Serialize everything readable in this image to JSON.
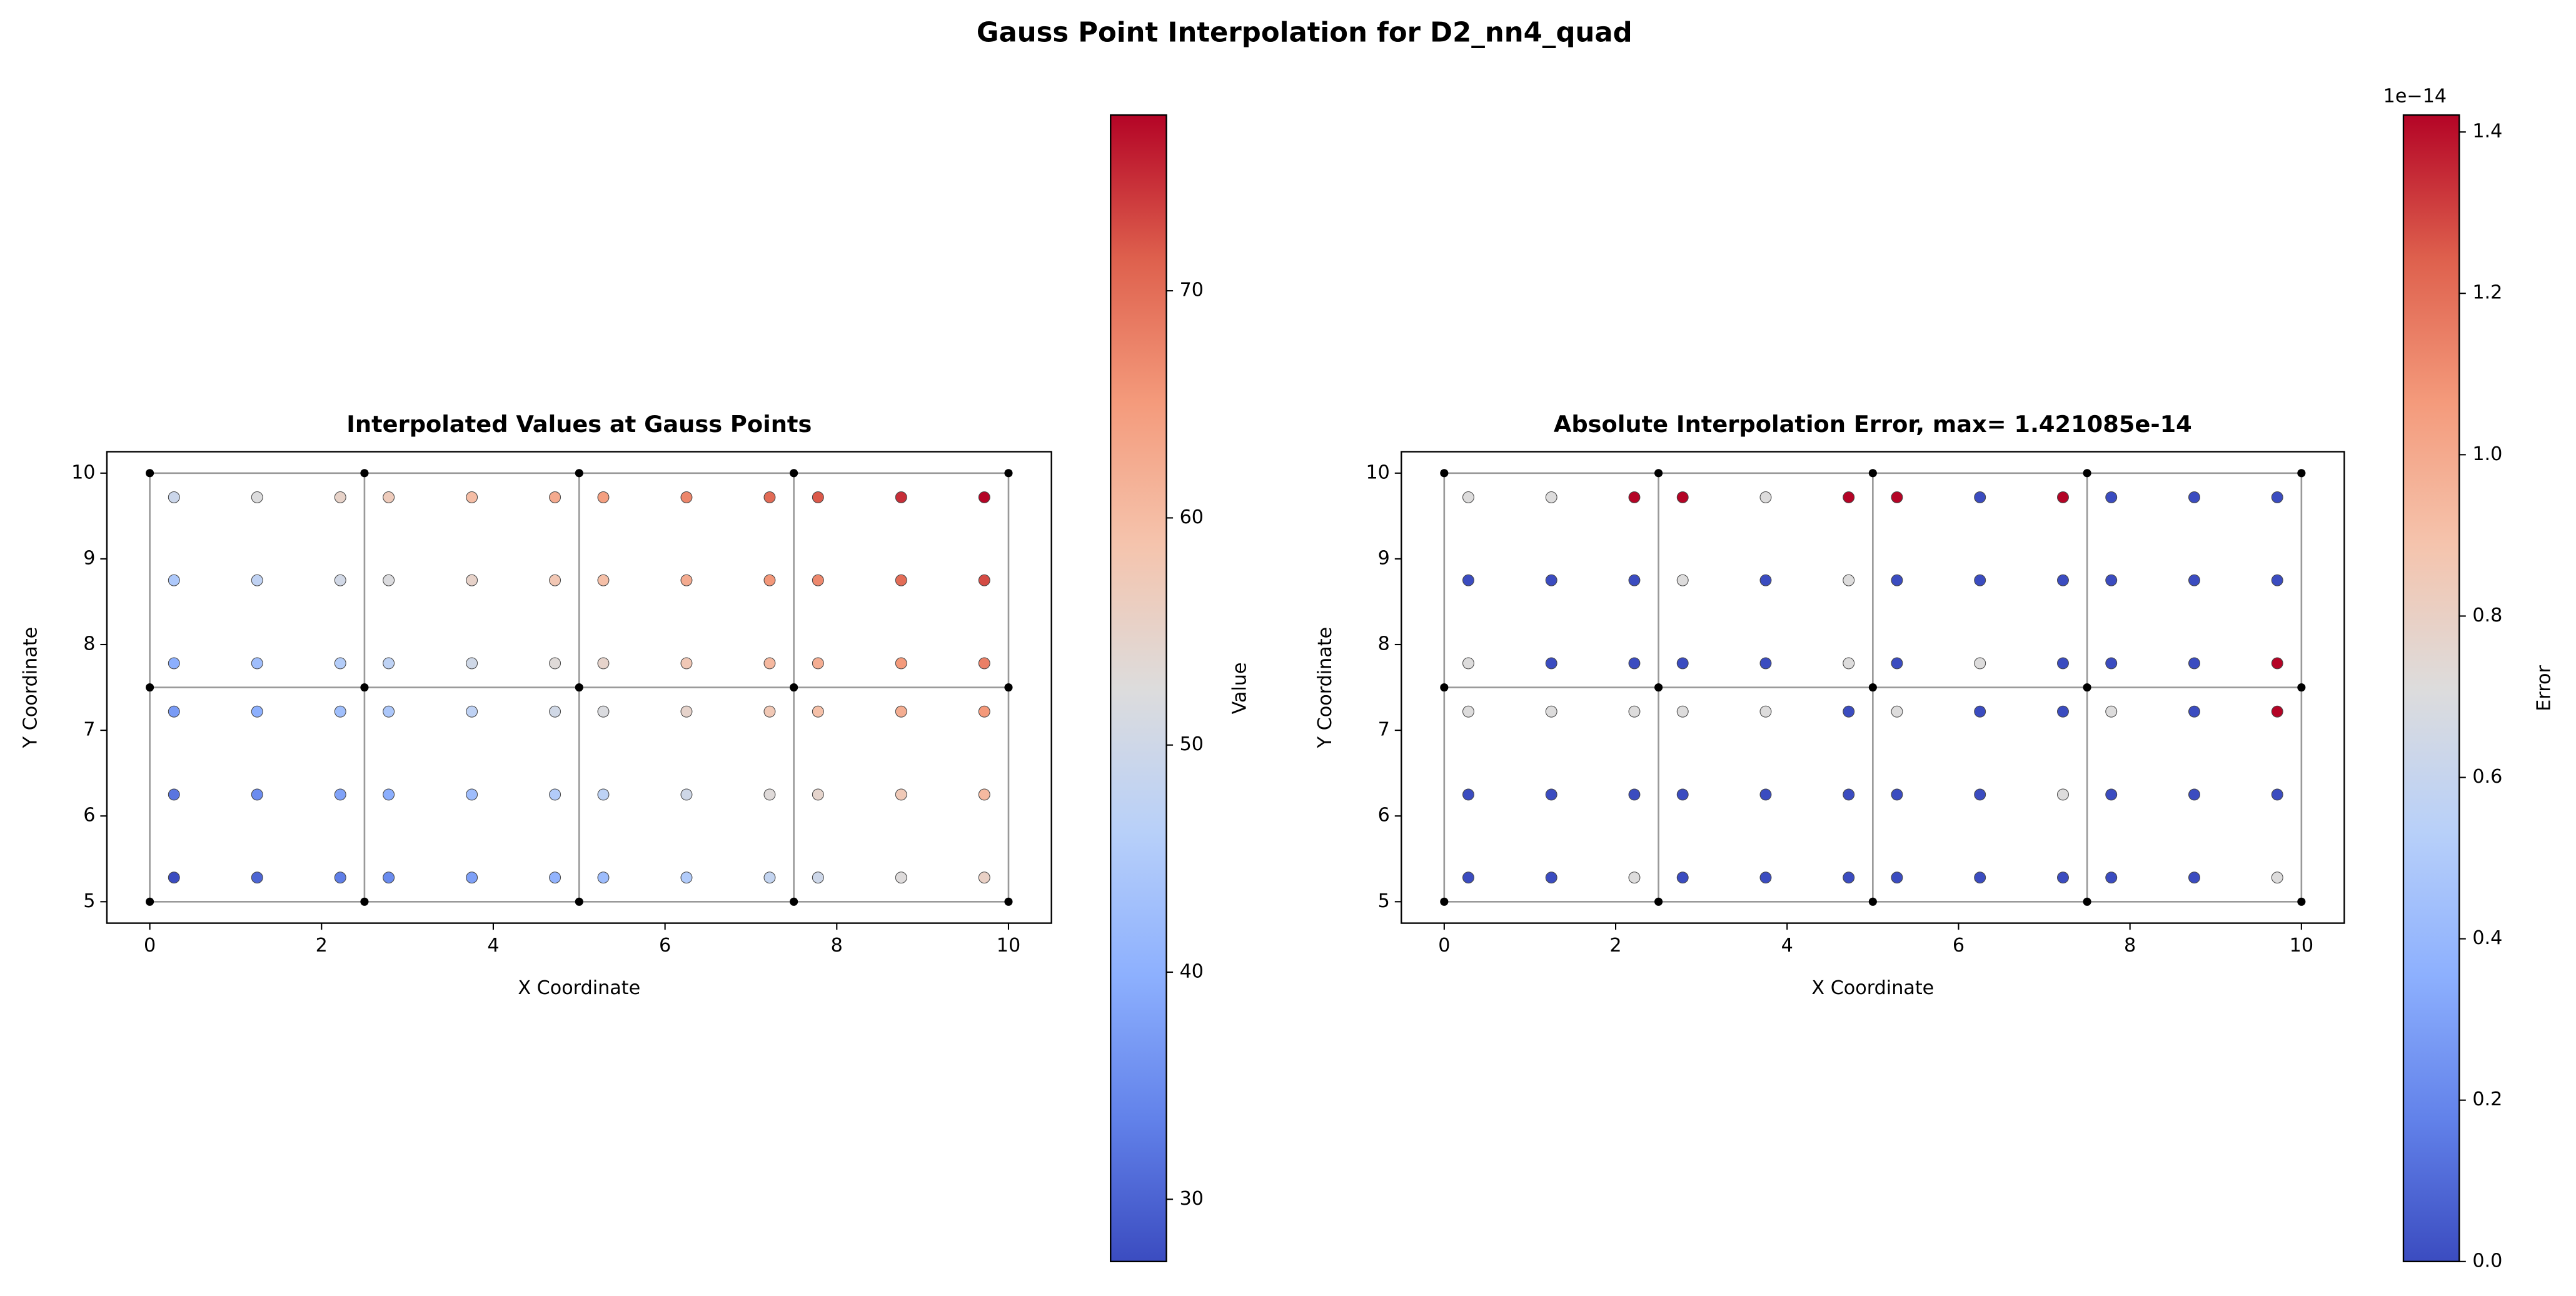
{
  "title": "Gauss Point Interpolation for D2_nn4_quad",
  "chart_data": [
    {
      "type": "scatter",
      "title": "Interpolated Values at Gauss Points",
      "xlabel": "X Coordinate",
      "ylabel": "Y Coordinate",
      "colorbar_label": "Value",
      "colormap": "coolwarm",
      "clim": [
        27.26,
        77.74
      ],
      "colorbar_ticks": [
        30,
        40,
        50,
        60,
        70
      ],
      "xlim": [
        -0.5,
        10.5
      ],
      "ylim": [
        4.75,
        10.25
      ],
      "xticks": [
        0,
        2,
        4,
        6,
        8,
        10
      ],
      "yticks": [
        5,
        6,
        7,
        8,
        9,
        10
      ],
      "mesh_x": [
        0,
        2.5,
        5,
        7.5,
        10
      ],
      "mesh_y": [
        5,
        7.5,
        10
      ],
      "x": [
        0.2817,
        1.25,
        2.2183,
        2.7817,
        3.75,
        4.7183,
        5.2817,
        6.25,
        7.2183,
        7.7817,
        8.75,
        9.7183,
        0.2817,
        1.25,
        2.2183,
        2.7817,
        3.75,
        4.7183,
        5.2817,
        6.25,
        7.2183,
        7.7817,
        8.75,
        9.7183,
        0.2817,
        1.25,
        2.2183,
        2.7817,
        3.75,
        4.7183,
        5.2817,
        6.25,
        7.2183,
        7.7817,
        8.75,
        9.7183,
        0.2817,
        1.25,
        2.2183,
        2.7817,
        3.75,
        4.7183,
        5.2817,
        6.25,
        7.2183,
        7.7817,
        8.75,
        9.7183,
        0.2817,
        1.25,
        2.2183,
        2.7817,
        3.75,
        4.7183,
        5.2817,
        6.25,
        7.2183,
        7.7817,
        8.75,
        9.7183,
        0.2817,
        1.25,
        2.2183,
        2.7817,
        3.75,
        4.7183,
        5.2817,
        6.25,
        7.2183,
        7.7817,
        8.75,
        9.7183
      ],
      "y": [
        5.2817,
        5.2817,
        5.2817,
        5.2817,
        5.2817,
        5.2817,
        5.2817,
        5.2817,
        5.2817,
        5.2817,
        5.2817,
        5.2817,
        6.25,
        6.25,
        6.25,
        6.25,
        6.25,
        6.25,
        6.25,
        6.25,
        6.25,
        6.25,
        6.25,
        6.25,
        7.2183,
        7.2183,
        7.2183,
        7.2183,
        7.2183,
        7.2183,
        7.2183,
        7.2183,
        7.2183,
        7.2183,
        7.2183,
        7.2183,
        7.7817,
        7.7817,
        7.7817,
        7.7817,
        7.7817,
        7.7817,
        7.7817,
        7.7817,
        7.7817,
        7.7817,
        7.7817,
        7.7817,
        8.75,
        8.75,
        8.75,
        8.75,
        8.75,
        8.75,
        8.75,
        8.75,
        8.75,
        8.75,
        8.75,
        8.75,
        9.7183,
        9.7183,
        9.7183,
        9.7183,
        9.7183,
        9.7183,
        9.7183,
        9.7183,
        9.7183,
        9.7183,
        9.7183,
        9.7183
      ],
      "values": [
        27.26,
        30.16,
        33.06,
        34.76,
        37.66,
        40.56,
        42.26,
        45.16,
        48.06,
        49.76,
        52.66,
        55.56,
        32.1,
        35.0,
        37.9,
        39.6,
        42.5,
        45.4,
        47.1,
        50.0,
        52.9,
        54.6,
        57.5,
        60.4,
        36.94,
        39.84,
        42.74,
        44.44,
        47.34,
        50.24,
        51.94,
        54.84,
        57.74,
        59.44,
        62.34,
        65.24,
        39.76,
        42.66,
        45.56,
        47.26,
        50.16,
        53.06,
        54.76,
        57.66,
        60.56,
        62.26,
        65.16,
        68.06,
        44.6,
        47.5,
        50.4,
        52.1,
        55.0,
        57.9,
        59.6,
        62.5,
        65.4,
        67.1,
        70.0,
        72.9,
        49.44,
        52.34,
        55.24,
        56.94,
        59.84,
        62.74,
        64.44,
        67.34,
        70.24,
        71.94,
        74.84,
        77.74
      ]
    },
    {
      "type": "scatter",
      "title": "Absolute Interpolation Error, max= 1.421085e-14",
      "xlabel": "X Coordinate",
      "ylabel": "Y Coordinate",
      "colorbar_label": "Error",
      "colorbar_offset": "1e−14",
      "colormap": "coolwarm",
      "clim": [
        0,
        1.421085e-14
      ],
      "colorbar_ticks": [
        {
          "value": 0,
          "label": "0.0"
        },
        {
          "value": 2e-15,
          "label": "0.2"
        },
        {
          "value": 4e-15,
          "label": "0.4"
        },
        {
          "value": 6e-15,
          "label": "0.6"
        },
        {
          "value": 8e-15,
          "label": "0.8"
        },
        {
          "value": 1e-14,
          "label": "1.0"
        },
        {
          "value": 1.2e-14,
          "label": "1.2"
        },
        {
          "value": 1.4e-14,
          "label": "1.4"
        }
      ],
      "xlim": [
        -0.5,
        10.5
      ],
      "ylim": [
        4.75,
        10.25
      ],
      "xticks": [
        0,
        2,
        4,
        6,
        8,
        10
      ],
      "yticks": [
        5,
        6,
        7,
        8,
        9,
        10
      ],
      "mesh_x": [
        0,
        2.5,
        5,
        7.5,
        10
      ],
      "mesh_y": [
        5,
        7.5,
        10
      ],
      "x": [
        0.2817,
        1.25,
        2.2183,
        2.7817,
        3.75,
        4.7183,
        5.2817,
        6.25,
        7.2183,
        7.7817,
        8.75,
        9.7183,
        0.2817,
        1.25,
        2.2183,
        2.7817,
        3.75,
        4.7183,
        5.2817,
        6.25,
        7.2183,
        7.7817,
        8.75,
        9.7183,
        0.2817,
        1.25,
        2.2183,
        2.7817,
        3.75,
        4.7183,
        5.2817,
        6.25,
        7.2183,
        7.7817,
        8.75,
        9.7183,
        0.2817,
        1.25,
        2.2183,
        2.7817,
        3.75,
        4.7183,
        5.2817,
        6.25,
        7.2183,
        7.7817,
        8.75,
        9.7183,
        0.2817,
        1.25,
        2.2183,
        2.7817,
        3.75,
        4.7183,
        5.2817,
        6.25,
        7.2183,
        7.7817,
        8.75,
        9.7183,
        0.2817,
        1.25,
        2.2183,
        2.7817,
        3.75,
        4.7183,
        5.2817,
        6.25,
        7.2183,
        7.7817,
        8.75,
        9.7183
      ],
      "y": [
        5.2817,
        5.2817,
        5.2817,
        5.2817,
        5.2817,
        5.2817,
        5.2817,
        5.2817,
        5.2817,
        5.2817,
        5.2817,
        5.2817,
        6.25,
        6.25,
        6.25,
        6.25,
        6.25,
        6.25,
        6.25,
        6.25,
        6.25,
        6.25,
        6.25,
        6.25,
        7.2183,
        7.2183,
        7.2183,
        7.2183,
        7.2183,
        7.2183,
        7.2183,
        7.2183,
        7.2183,
        7.2183,
        7.2183,
        7.2183,
        7.7817,
        7.7817,
        7.7817,
        7.7817,
        7.7817,
        7.7817,
        7.7817,
        7.7817,
        7.7817,
        7.7817,
        7.7817,
        7.7817,
        8.75,
        8.75,
        8.75,
        8.75,
        8.75,
        8.75,
        8.75,
        8.75,
        8.75,
        8.75,
        8.75,
        8.75,
        9.7183,
        9.7183,
        9.7183,
        9.7183,
        9.7183,
        9.7183,
        9.7183,
        9.7183,
        9.7183,
        9.7183,
        9.7183,
        9.7183
      ],
      "values": [
        0,
        0,
        7.105427e-15,
        0,
        0,
        0,
        0,
        0,
        0,
        0,
        0,
        7.105427e-15,
        0,
        0,
        0,
        0,
        0,
        0,
        0,
        0,
        7.105427e-15,
        0,
        0,
        0,
        7.105427e-15,
        7.105427e-15,
        7.105427e-15,
        7.105427e-15,
        7.105427e-15,
        0,
        7.105427e-15,
        0,
        0,
        7.105427e-15,
        0,
        1.421085e-14,
        7.105427e-15,
        0,
        0,
        0,
        0,
        7.105427e-15,
        0,
        7.105427e-15,
        0,
        0,
        0,
        1.421085e-14,
        0,
        0,
        0,
        7.105427e-15,
        0,
        7.105427e-15,
        0,
        0,
        0,
        0,
        0,
        0,
        7.105427e-15,
        7.105427e-15,
        1.421085e-14,
        1.421085e-14,
        7.105427e-15,
        1.421085e-14,
        1.421085e-14,
        0,
        1.421085e-14,
        0,
        0,
        0
      ]
    }
  ]
}
